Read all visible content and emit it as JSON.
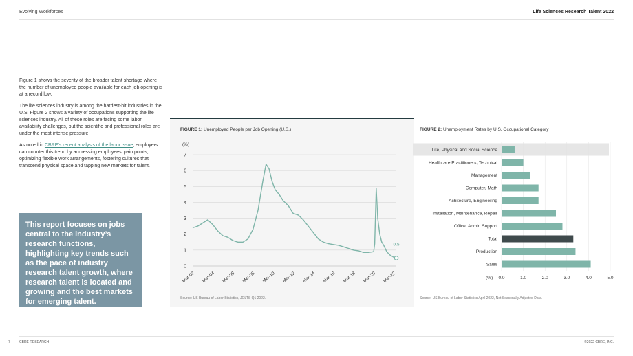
{
  "header": {
    "section": "Evolving Workforces",
    "report": "Life Sciences Research Talent 2022"
  },
  "body": {
    "p1": "Figure 1 shows the severity of the broader talent shortage where the number of unemployed people available for each job opening is at a record low.",
    "p2": "The life sciences industry is among the hardest-hit industries in the U.S. Figure 2 shows a variety of occupations supporting the life sciences industry. All of these roles are facing some labor availability challenges, but the scientific and professional roles are under the most intense pressure.",
    "p3_pre": "As noted in ",
    "p3_link": "CBRE’s recent analysis of the labor issue",
    "p3_post": ", employers can counter this trend by addressing employees’ pain points, optimizing flexible work arrangements, fostering cultures that transcend physical space and tapping new markets for talent."
  },
  "callout": "This report focuses on jobs central to the industry’s research functions, highlighting key trends such as the pace of industry research talent growth, where research talent is located and growing and the best markets for emerging talent.",
  "figure1": {
    "label": "FIGURE 1:",
    "title": "Unemployed People per Job Opening (U.S.)",
    "unit": "(%)",
    "source": "Source: US Bureau of Labor Statistics, JOLTS Q1 2022.",
    "end_label": "0.5"
  },
  "figure2": {
    "label": "FIGURE 2:",
    "title": "Unemployment Rates by U.S. Occupational Category",
    "unit": "(%)",
    "source": "Source: US Bureau of Labor Statistics April 2022, Not Seasonally Adjusted Data."
  },
  "footer": {
    "page": "7",
    "left": "CBRE RESEARCH",
    "right": "©2022 CBRE, INC."
  },
  "colors": {
    "teal": "#7fb5a9",
    "dark": "#3f4a4c",
    "callout": "#7b96a4",
    "highlight": "#e6e6e6"
  },
  "chart_data": [
    {
      "type": "line",
      "title": "Unemployed People per Job Opening (U.S.)",
      "ylabel": "(%)",
      "ylim": [
        0,
        7
      ],
      "yticks": [
        0,
        1,
        2,
        3,
        4,
        5,
        6,
        7
      ],
      "xticks": [
        "Mar-02",
        "Mar-04",
        "Mar-06",
        "Mar-08",
        "Mar-10",
        "Mar-12",
        "Mar-14",
        "Mar-16",
        "Mar-18",
        "Mar-20",
        "Mar-22"
      ],
      "grid": true,
      "series": [
        {
          "x": [
            2002.0,
            2002.5,
            2003.0,
            2003.5,
            2004.0,
            2004.5,
            2005.0,
            2005.5,
            2006.0,
            2006.5,
            2007.0,
            2007.5,
            2008.0,
            2008.5,
            2009.0,
            2009.3,
            2009.6,
            2009.9,
            2010.2,
            2010.6,
            2011.0,
            2011.5,
            2012.0,
            2012.5,
            2013.0,
            2013.5,
            2014.0,
            2014.5,
            2015.0,
            2015.5,
            2016.0,
            2016.5,
            2017.0,
            2017.5,
            2018.0,
            2018.5,
            2019.0,
            2019.5,
            2020.0,
            2020.1,
            2020.25,
            2020.4,
            2020.6,
            2020.8,
            2021.0,
            2021.3,
            2021.6,
            2022.0,
            2022.25
          ],
          "values": [
            2.4,
            2.5,
            2.7,
            2.9,
            2.6,
            2.2,
            1.9,
            1.8,
            1.6,
            1.5,
            1.5,
            1.7,
            2.3,
            3.5,
            5.4,
            6.4,
            6.1,
            5.3,
            4.8,
            4.5,
            4.1,
            3.8,
            3.3,
            3.2,
            2.9,
            2.5,
            2.1,
            1.7,
            1.5,
            1.4,
            1.35,
            1.3,
            1.2,
            1.1,
            1.0,
            0.95,
            0.85,
            0.85,
            0.9,
            1.4,
            4.9,
            3.0,
            2.0,
            1.5,
            1.3,
            0.9,
            0.7,
            0.55,
            0.5
          ]
        }
      ]
    },
    {
      "type": "bar",
      "title": "Unemployment Rates by U.S. Occupational Category",
      "xlabel": "(%)",
      "xlim": [
        0,
        5
      ],
      "xticks": [
        "0.0",
        "1.0",
        "2.0",
        "3.0",
        "4.0",
        "5.0"
      ],
      "categories": [
        "Life, Physical and Social Science",
        "Healthcare Practitioners, Technical",
        "Management",
        "Computer, Math",
        "Achitecture, Engineering",
        "Installation, Maintenance, Repair",
        "Office, Admin Support",
        "Total",
        "Production",
        "Sales"
      ],
      "values": [
        0.6,
        1.0,
        1.3,
        1.7,
        1.7,
        2.5,
        2.8,
        3.3,
        3.4,
        4.1
      ],
      "highlight": "Total"
    }
  ]
}
